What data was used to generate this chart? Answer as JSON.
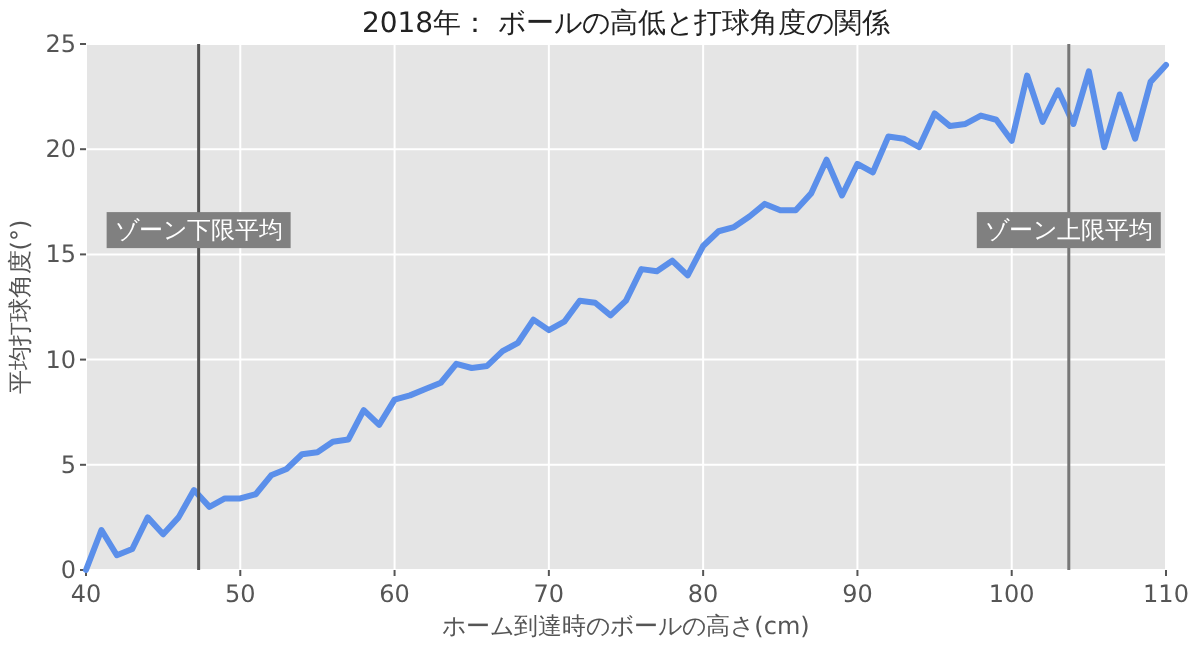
{
  "chart_data": {
    "type": "line",
    "title": "2018年： ボールの高低と打球角度の関係",
    "xlabel": "ホーム到達時のボールの高さ(cm)",
    "ylabel": "平均打球角度(°)",
    "x": [
      40,
      41,
      42,
      43,
      44,
      45,
      46,
      47,
      48,
      49,
      50,
      51,
      52,
      53,
      54,
      55,
      56,
      57,
      58,
      59,
      60,
      61,
      62,
      63,
      64,
      65,
      66,
      67,
      68,
      69,
      70,
      71,
      72,
      73,
      74,
      75,
      76,
      77,
      78,
      79,
      80,
      81,
      82,
      83,
      84,
      85,
      86,
      87,
      88,
      89,
      90,
      91,
      92,
      93,
      94,
      95,
      96,
      97,
      98,
      99,
      100,
      101,
      102,
      103,
      104,
      105,
      106,
      107,
      108,
      109,
      110
    ],
    "series": [
      {
        "color": "#5b8fea",
        "values": [
          0,
          1.9,
          0.7,
          1.0,
          2.5,
          1.7,
          2.5,
          3.8,
          3.0,
          3.4,
          3.4,
          3.6,
          4.5,
          4.8,
          5.5,
          5.6,
          6.1,
          6.2,
          7.6,
          6.9,
          8.1,
          8.3,
          8.6,
          8.9,
          9.8,
          9.6,
          9.7,
          10.4,
          10.8,
          11.9,
          11.4,
          11.8,
          12.8,
          12.7,
          12.1,
          12.8,
          14.3,
          14.2,
          14.7,
          14.0,
          15.4,
          16.1,
          16.3,
          16.8,
          17.4,
          17.1,
          17.1,
          17.9,
          19.5,
          17.8,
          19.3,
          18.9,
          20.6,
          20.5,
          20.1,
          21.7,
          21.1,
          21.2,
          21.6,
          21.4,
          20.4,
          23.5,
          21.3,
          22.8,
          21.2,
          23.7,
          20.1,
          22.6,
          20.5,
          23.2,
          24.0
        ]
      }
    ],
    "xlim": [
      40,
      110
    ],
    "xticks": [
      40,
      50,
      60,
      70,
      80,
      90,
      100,
      110
    ],
    "ylim": [
      0,
      25
    ],
    "yticks": [
      0,
      5,
      10,
      15,
      20,
      25
    ],
    "grid": true,
    "marker": "none",
    "line_style": "solid",
    "ref_lines": [
      {
        "axis": "x",
        "value": 47.3,
        "label": "ゾーン下限平均",
        "color": "#555555"
      },
      {
        "axis": "x",
        "value": 103.7,
        "label": "ゾーン上限平均",
        "color": "#777777"
      }
    ]
  }
}
